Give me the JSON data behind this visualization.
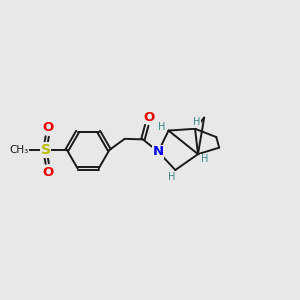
{
  "background_color": "#e8e8e8",
  "bond_color": "#1a1a1a",
  "N_color": "#0000ee",
  "O_color": "#ee0000",
  "S_color": "#bbbb00",
  "H_color": "#3a8a8a",
  "line_width": 1.4,
  "figsize": [
    3.0,
    3.0
  ],
  "dpi": 100,
  "xlim": [
    0,
    10
  ],
  "ylim": [
    2,
    8
  ]
}
